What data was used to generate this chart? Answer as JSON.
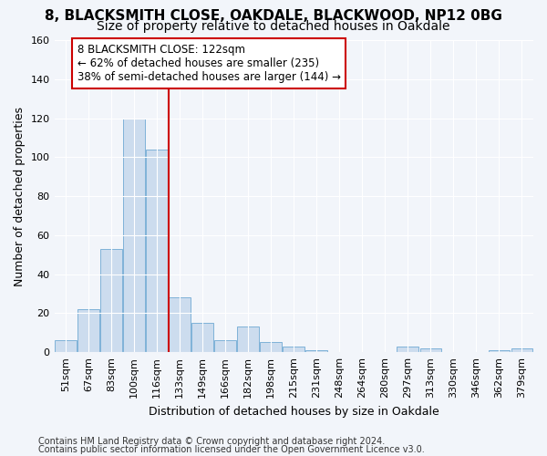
{
  "title1": "8, BLACKSMITH CLOSE, OAKDALE, BLACKWOOD, NP12 0BG",
  "title2": "Size of property relative to detached houses in Oakdale",
  "xlabel": "Distribution of detached houses by size in Oakdale",
  "ylabel": "Number of detached properties",
  "categories": [
    "51sqm",
    "67sqm",
    "83sqm",
    "100sqm",
    "116sqm",
    "133sqm",
    "149sqm",
    "166sqm",
    "182sqm",
    "198sqm",
    "215sqm",
    "231sqm",
    "248sqm",
    "264sqm",
    "280sqm",
    "297sqm",
    "313sqm",
    "330sqm",
    "346sqm",
    "362sqm",
    "379sqm"
  ],
  "values": [
    6,
    22,
    53,
    120,
    104,
    28,
    15,
    6,
    13,
    5,
    3,
    1,
    0,
    0,
    0,
    3,
    2,
    0,
    0,
    1,
    2
  ],
  "bar_color": "#ccdcee",
  "bar_edge_color": "#7fb2d8",
  "vline_x": 4.5,
  "vline_color": "#cc0000",
  "annotation_line1": "8 BLACKSMITH CLOSE: 122sqm",
  "annotation_line2": "← 62% of detached houses are smaller (235)",
  "annotation_line3": "38% of semi-detached houses are larger (144) →",
  "annotation_box_color": "#ffffff",
  "annotation_box_edge_color": "#cc0000",
  "ylim": [
    0,
    160
  ],
  "yticks": [
    0,
    20,
    40,
    60,
    80,
    100,
    120,
    140,
    160
  ],
  "footer1": "Contains HM Land Registry data © Crown copyright and database right 2024.",
  "footer2": "Contains public sector information licensed under the Open Government Licence v3.0.",
  "bg_color": "#f2f5fa",
  "plot_bg_color": "#f2f5fa",
  "grid_color": "#ffffff",
  "title1_fontsize": 11,
  "title2_fontsize": 10,
  "axis_label_fontsize": 9,
  "tick_fontsize": 8,
  "footer_fontsize": 7,
  "annotation_fontsize": 8.5
}
